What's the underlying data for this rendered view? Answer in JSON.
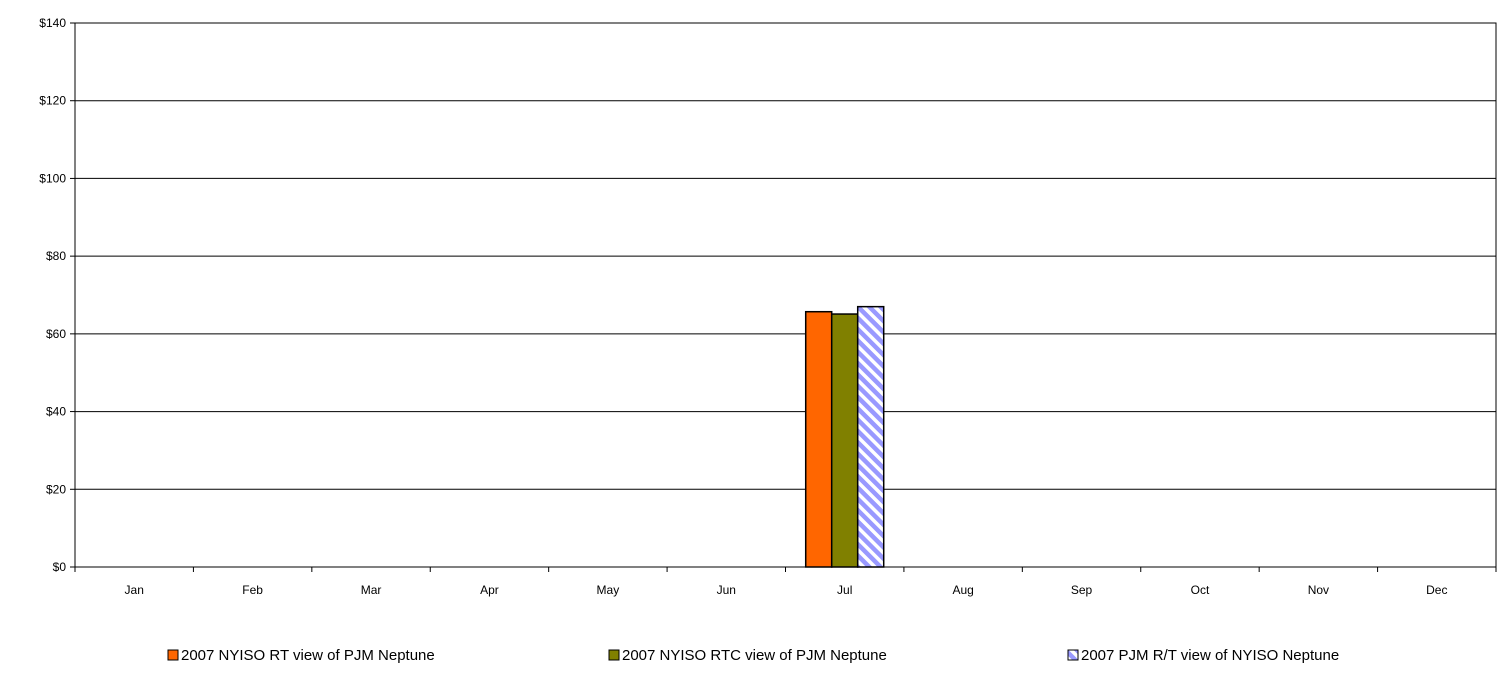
{
  "chart_data": {
    "type": "bar",
    "title": "",
    "xlabel": "",
    "ylabel": "",
    "categories": [
      "Jan",
      "Feb",
      "Mar",
      "Apr",
      "May",
      "Jun",
      "Jul",
      "Aug",
      "Sep",
      "Oct",
      "Nov",
      "Dec"
    ],
    "ylim": [
      0,
      140
    ],
    "yticks": [
      0,
      20,
      40,
      60,
      80,
      100,
      120,
      140
    ],
    "ytick_labels": [
      "$0",
      "$20",
      "$40",
      "$60",
      "$80",
      "$100",
      "$120",
      "$140"
    ],
    "grid": true,
    "legend_position": "bottom",
    "series": [
      {
        "name": "2007 NYISO RT view of PJM Neptune",
        "color": "#ff6600",
        "pattern": "solid",
        "values": [
          null,
          null,
          null,
          null,
          null,
          null,
          65.7,
          null,
          null,
          null,
          null,
          null
        ]
      },
      {
        "name": "2007 NYISO RTC view of PJM Neptune",
        "color": "#808000",
        "pattern": "solid",
        "values": [
          null,
          null,
          null,
          null,
          null,
          null,
          65.1,
          null,
          null,
          null,
          null,
          null
        ]
      },
      {
        "name": "2007 PJM R/T view of NYISO Neptune",
        "color": "#9999ff",
        "pattern": "diagonal-stripes",
        "values": [
          null,
          null,
          null,
          null,
          null,
          null,
          67.0,
          null,
          null,
          null,
          null,
          null
        ]
      }
    ]
  }
}
